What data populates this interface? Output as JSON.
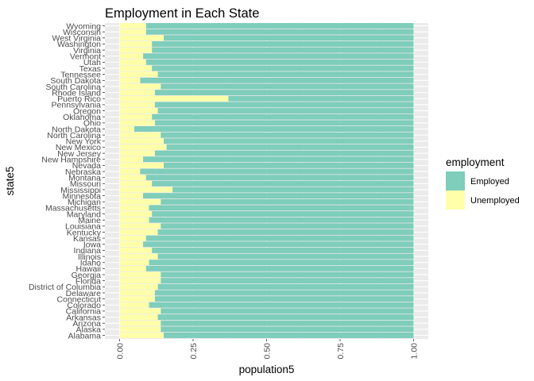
{
  "chart_data": {
    "type": "bar",
    "orientation": "horizontal",
    "stacked": true,
    "title": "Employment in Each State",
    "xlabel": "population5",
    "ylabel": "state5",
    "xlim": [
      0,
      1
    ],
    "xticks": [
      "0.00",
      "0.25",
      "0.50",
      "0.75",
      "1.00"
    ],
    "grid": true,
    "legend": {
      "title": "employment",
      "position": "right"
    },
    "categories": [
      "Alabama",
      "Alaska",
      "Arizona",
      "Arkansas",
      "California",
      "Colorado",
      "Connecticut",
      "Delaware",
      "District of Columbia",
      "Florida",
      "Georgia",
      "Hawaii",
      "Idaho",
      "Illinois",
      "Indiana",
      "Iowa",
      "Kansas",
      "Kentucky",
      "Louisiana",
      "Maine",
      "Maryland",
      "Massachusetts",
      "Michigan",
      "Minnesota",
      "Mississippi",
      "Missouri",
      "Montana",
      "Nebraska",
      "Nevada",
      "New Hampshire",
      "New Jersey",
      "New Mexico",
      "New York",
      "North Carolina",
      "North Dakota",
      "Ohio",
      "Oklahoma",
      "Oregon",
      "Pennsylvania",
      "Puerto Rico",
      "Rhode Island",
      "South Carolina",
      "South Dakota",
      "Tennessee",
      "Texas",
      "Utah",
      "Vermont",
      "Virginia",
      "Washington",
      "West Virginia",
      "Wisconsin",
      "Wyoming"
    ],
    "series": [
      {
        "name": "Employed",
        "color": "#7FCDBB",
        "values": [
          0.85,
          0.86,
          0.86,
          0.87,
          0.86,
          0.9,
          0.88,
          0.88,
          0.87,
          0.86,
          0.86,
          0.91,
          0.9,
          0.87,
          0.89,
          0.92,
          0.91,
          0.87,
          0.86,
          0.9,
          0.89,
          0.9,
          0.86,
          0.92,
          0.82,
          0.89,
          0.91,
          0.93,
          0.85,
          0.92,
          0.88,
          0.84,
          0.85,
          0.86,
          0.95,
          0.88,
          0.89,
          0.87,
          0.88,
          0.63,
          0.88,
          0.86,
          0.93,
          0.87,
          0.89,
          0.91,
          0.92,
          0.89,
          0.89,
          0.85,
          0.91,
          0.91
        ]
      },
      {
        "name": "Unemployed",
        "color": "#FFFFAA",
        "values": [
          0.15,
          0.14,
          0.14,
          0.13,
          0.14,
          0.1,
          0.12,
          0.12,
          0.13,
          0.14,
          0.14,
          0.09,
          0.1,
          0.13,
          0.11,
          0.08,
          0.09,
          0.13,
          0.14,
          0.1,
          0.11,
          0.1,
          0.14,
          0.08,
          0.18,
          0.11,
          0.09,
          0.07,
          0.15,
          0.08,
          0.12,
          0.16,
          0.15,
          0.14,
          0.05,
          0.12,
          0.11,
          0.13,
          0.12,
          0.37,
          0.12,
          0.14,
          0.07,
          0.13,
          0.11,
          0.09,
          0.08,
          0.11,
          0.11,
          0.15,
          0.09,
          0.09
        ]
      }
    ]
  }
}
